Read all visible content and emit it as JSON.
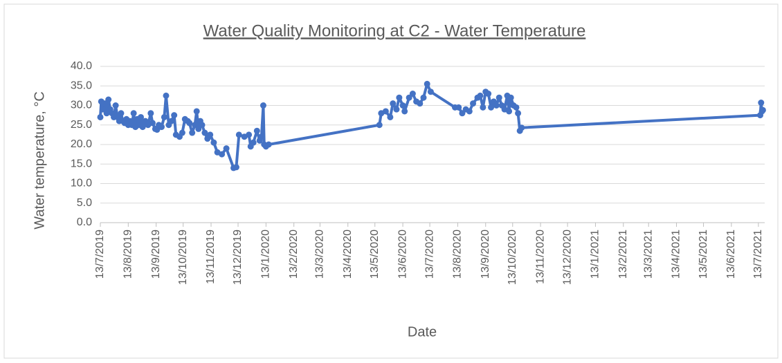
{
  "chart_data": {
    "type": "line",
    "title": "Water Quality Monitoring at C2 - Water Temperature",
    "x_label": "Date",
    "y_label": "Water temperature, °C",
    "color": "#4472c4",
    "x": [
      "2019-07-13",
      "2019-07-14",
      "2019-07-16",
      "2019-07-18",
      "2019-07-20",
      "2019-07-22",
      "2019-07-24",
      "2019-07-26",
      "2019-07-28",
      "2019-07-30",
      "2019-08-01",
      "2019-08-03",
      "2019-08-05",
      "2019-08-07",
      "2019-08-09",
      "2019-08-11",
      "2019-08-13",
      "2019-08-15",
      "2019-08-17",
      "2019-08-19",
      "2019-08-21",
      "2019-08-23",
      "2019-08-25",
      "2019-08-27",
      "2019-08-29",
      "2019-09-01",
      "2019-09-04",
      "2019-09-07",
      "2019-09-09",
      "2019-09-12",
      "2019-09-14",
      "2019-09-16",
      "2019-09-19",
      "2019-09-22",
      "2019-09-24",
      "2019-09-27",
      "2019-09-30",
      "2019-10-03",
      "2019-10-05",
      "2019-10-09",
      "2019-10-12",
      "2019-10-15",
      "2019-10-18",
      "2019-10-20",
      "2019-10-23",
      "2019-10-26",
      "2019-10-28",
      "2019-10-30",
      "2019-11-01",
      "2019-11-03",
      "2019-11-06",
      "2019-11-09",
      "2019-11-12",
      "2019-11-16",
      "2019-11-20",
      "2019-11-25",
      "2019-11-30",
      "2019-12-08",
      "2019-12-11",
      "2019-12-14",
      "2019-12-20",
      "2019-12-25",
      "2019-12-27",
      "2019-12-30",
      "2020-01-03",
      "2020-01-06",
      "2020-01-08",
      "2020-01-10",
      "2020-01-11",
      "2020-01-13",
      "2020-01-16",
      "2020-05-18",
      "2020-05-20",
      "2020-05-25",
      "2020-05-30",
      "2020-06-02",
      "2020-06-06",
      "2020-06-09",
      "2020-06-13",
      "2020-06-15",
      "2020-06-20",
      "2020-06-24",
      "2020-06-28",
      "2020-07-02",
      "2020-07-06",
      "2020-07-10",
      "2020-07-14",
      "2020-08-10",
      "2020-08-14",
      "2020-08-18",
      "2020-08-22",
      "2020-08-26",
      "2020-08-30",
      "2020-09-04",
      "2020-09-07",
      "2020-09-10",
      "2020-09-13",
      "2020-09-16",
      "2020-09-19",
      "2020-09-22",
      "2020-09-25",
      "2020-09-28",
      "2020-10-01",
      "2020-10-04",
      "2020-10-07",
      "2020-10-09",
      "2020-10-11",
      "2020-10-14",
      "2020-10-17",
      "2020-10-19",
      "2020-10-21",
      "2020-10-23",
      "2021-07-15",
      "2021-07-16",
      "2021-07-17",
      "2021-07-18"
    ],
    "values": [
      27,
      31,
      29,
      30.5,
      28,
      31.5,
      29,
      28,
      27,
      30,
      27,
      26,
      28,
      26,
      25.5,
      26.5,
      25,
      26,
      25,
      28,
      24.5,
      26.5,
      25,
      27,
      24.5,
      26,
      25,
      28,
      25.5,
      24,
      23.8,
      25,
      24.5,
      27,
      32.5,
      25,
      26,
      27.5,
      22.5,
      22,
      23,
      26.5,
      26,
      25.5,
      23,
      25,
      28.5,
      24,
      26,
      25,
      23,
      21.5,
      22.5,
      20.5,
      18,
      17.5,
      19,
      14,
      14.2,
      22.5,
      22,
      22.5,
      19.5,
      20.5,
      23.5,
      21,
      22,
      30,
      20,
      19.5,
      20,
      25,
      28,
      28.5,
      27,
      30.5,
      29,
      32,
      30,
      28.5,
      32,
      33,
      31,
      30.5,
      32,
      35.5,
      33.5,
      29.5,
      29.5,
      28,
      29,
      28.5,
      30.5,
      32,
      32.5,
      29.5,
      33.5,
      33,
      29.5,
      31,
      30,
      32,
      30,
      29,
      32.5,
      28.5,
      32,
      30,
      29.5,
      28,
      23.5,
      24.3,
      27.5,
      30.7,
      28.5,
      28.8
    ],
    "xlim": [
      "2019-07-13",
      "2021-07-20"
    ],
    "xticks": [
      {
        "value": "2019-07-13",
        "label": "13/7/2019"
      },
      {
        "value": "2019-08-13",
        "label": "13/8/2019"
      },
      {
        "value": "2019-09-13",
        "label": "13/9/2019"
      },
      {
        "value": "2019-10-13",
        "label": "13/10/2019"
      },
      {
        "value": "2019-11-13",
        "label": "13/11/2019"
      },
      {
        "value": "2019-12-13",
        "label": "13/12/2019"
      },
      {
        "value": "2020-01-13",
        "label": "13/1/2020"
      },
      {
        "value": "2020-02-13",
        "label": "13/2/2020"
      },
      {
        "value": "2020-03-13",
        "label": "13/3/2020"
      },
      {
        "value": "2020-04-13",
        "label": "13/4/2020"
      },
      {
        "value": "2020-05-13",
        "label": "13/5/2020"
      },
      {
        "value": "2020-06-13",
        "label": "13/6/2020"
      },
      {
        "value": "2020-07-13",
        "label": "13/7/2020"
      },
      {
        "value": "2020-08-13",
        "label": "13/8/2020"
      },
      {
        "value": "2020-09-13",
        "label": "13/9/2020"
      },
      {
        "value": "2020-10-13",
        "label": "13/10/2020"
      },
      {
        "value": "2020-11-13",
        "label": "13/11/2020"
      },
      {
        "value": "2020-12-13",
        "label": "13/12/2020"
      },
      {
        "value": "2021-01-13",
        "label": "13/1/2021"
      },
      {
        "value": "2021-02-13",
        "label": "13/2/2021"
      },
      {
        "value": "2021-03-13",
        "label": "13/3/2021"
      },
      {
        "value": "2021-04-13",
        "label": "13/4/2021"
      },
      {
        "value": "2021-05-13",
        "label": "13/5/2021"
      },
      {
        "value": "2021-06-13",
        "label": "13/6/2021"
      },
      {
        "value": "2021-07-13",
        "label": "13/7/2021"
      }
    ],
    "ylim": [
      0,
      40
    ],
    "yticks": [
      {
        "value": 0,
        "label": "0.0"
      },
      {
        "value": 5,
        "label": "5.0"
      },
      {
        "value": 10,
        "label": "10.0"
      },
      {
        "value": 15,
        "label": "15.0"
      },
      {
        "value": 20,
        "label": "20.0"
      },
      {
        "value": 25,
        "label": "25.0"
      },
      {
        "value": 30,
        "label": "30.0"
      },
      {
        "value": 35,
        "label": "35.0"
      },
      {
        "value": 40,
        "label": "40.0"
      }
    ],
    "grid": true
  }
}
